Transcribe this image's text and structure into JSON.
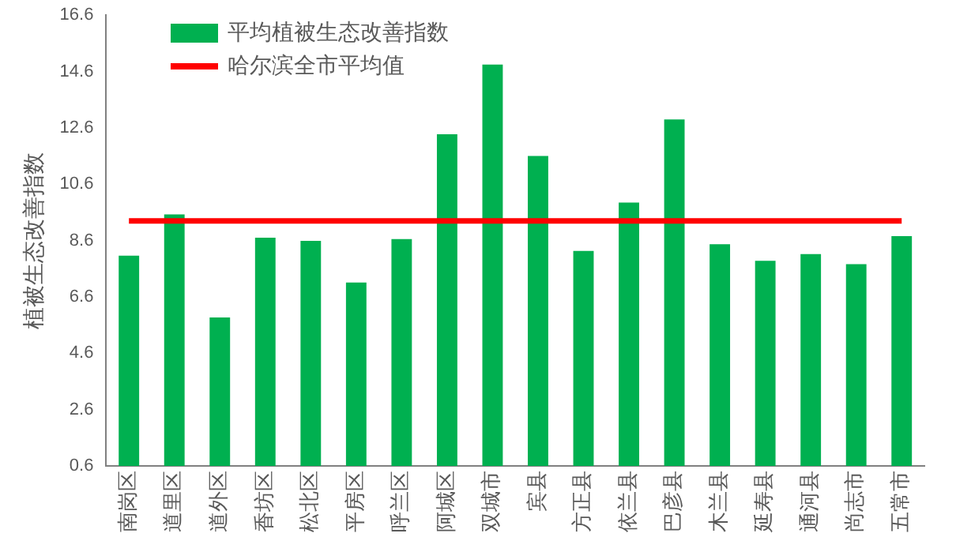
{
  "chart_data": {
    "type": "bar",
    "ylabel": "植被生态改善指数",
    "categories": [
      "南岗区",
      "道里区",
      "道外区",
      "香坊区",
      "松北区",
      "平房区",
      "呼兰区",
      "阿城区",
      "双城市",
      "宾县",
      "方正县",
      "依兰县",
      "巴彦县",
      "木兰县",
      "延寿县",
      "通河县",
      "尚志市",
      "五常市"
    ],
    "series": [
      {
        "name": "平均植被生态改善指数",
        "color": "#00b050",
        "values": [
          8.06,
          9.53,
          5.87,
          8.7,
          8.59,
          7.11,
          8.65,
          12.37,
          14.85,
          11.6,
          8.23,
          9.95,
          12.9,
          8.47,
          7.88,
          8.12,
          7.76,
          8.76
        ]
      },
      {
        "name": "哈尔滨全市平均值",
        "type": "line",
        "color": "#ff0000",
        "values": [
          9.3,
          9.3,
          9.3,
          9.3,
          9.3,
          9.3,
          9.3,
          9.3,
          9.3,
          9.3,
          9.3,
          9.3,
          9.3,
          9.3,
          9.3,
          9.3,
          9.3,
          9.3
        ]
      }
    ],
    "ylim": [
      0.6,
      16.6
    ],
    "yticks": [
      0.6,
      2.6,
      4.6,
      6.6,
      8.6,
      10.6,
      12.6,
      14.6,
      16.6
    ],
    "grid": false,
    "legend": "top left",
    "marker": "none"
  }
}
